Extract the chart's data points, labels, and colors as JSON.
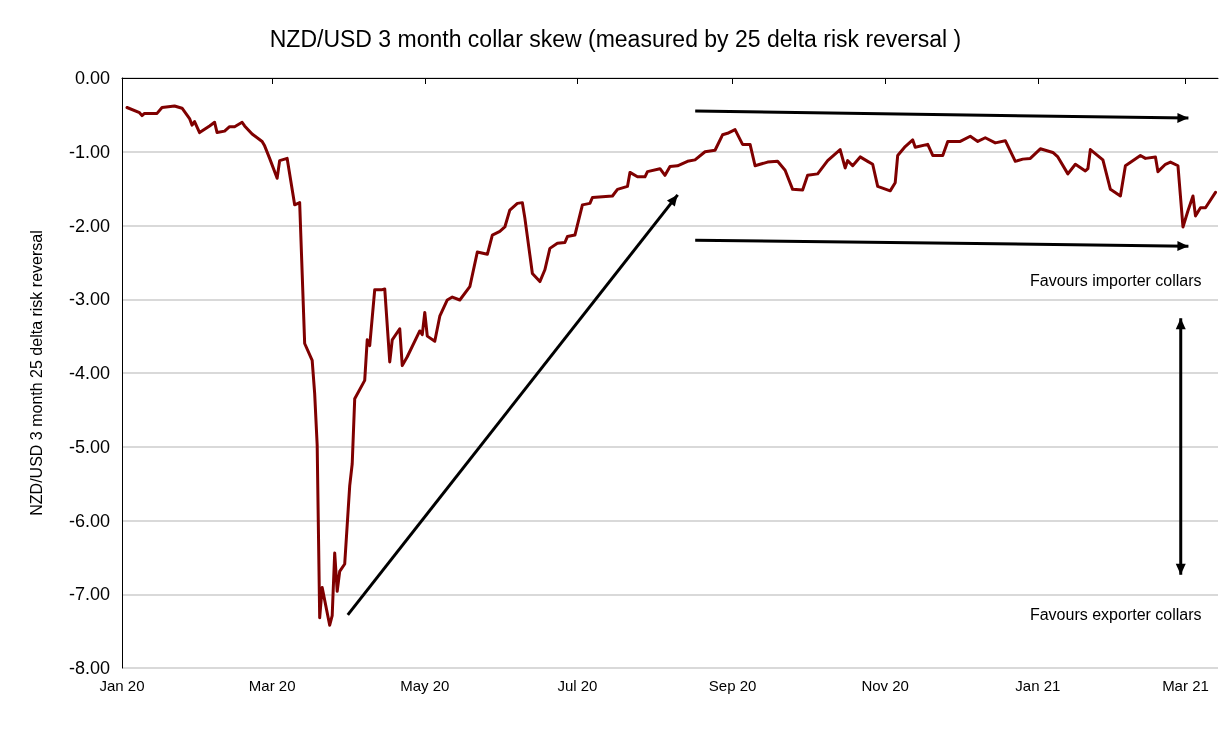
{
  "chart_data": {
    "type": "line",
    "title": "NZD/USD 3 month collar skew (measured by 25 delta risk reversal )",
    "ylabel": "NZD/USD 3 month 25 delta risk reversal",
    "annotations": [
      "Favours importer collars",
      "Favours exporter collars"
    ],
    "x": [
      "2020-01-03",
      "2020-01-08",
      "2020-01-09",
      "2020-01-10",
      "2020-01-15",
      "2020-01-17",
      "2020-01-22",
      "2020-01-25",
      "2020-01-28",
      "2020-01-29",
      "2020-01-30",
      "2020-02-01",
      "2020-02-05",
      "2020-02-07",
      "2020-02-08",
      "2020-02-11",
      "2020-02-13",
      "2020-02-15",
      "2020-02-18",
      "2020-02-19",
      "2020-02-22",
      "2020-02-26",
      "2020-02-27",
      "2020-02-29",
      "2020-03-03",
      "2020-03-04",
      "2020-03-07",
      "2020-03-10",
      "2020-03-12",
      "2020-03-14",
      "2020-03-17",
      "2020-03-18",
      "2020-03-19",
      "2020-03-20",
      "2020-03-21",
      "2020-03-24",
      "2020-03-25",
      "2020-03-26",
      "2020-03-27",
      "2020-03-28",
      "2020-03-30",
      "2020-04-01",
      "2020-04-02",
      "2020-04-03",
      "2020-04-07",
      "2020-04-08",
      "2020-04-09",
      "2020-04-11",
      "2020-04-14",
      "2020-04-15",
      "2020-04-17",
      "2020-04-18",
      "2020-04-21",
      "2020-04-22",
      "2020-04-24",
      "2020-04-29",
      "2020-04-30",
      "2020-05-01",
      "2020-05-02",
      "2020-05-05",
      "2020-05-07",
      "2020-05-10",
      "2020-05-12",
      "2020-05-15",
      "2020-05-19",
      "2020-05-22",
      "2020-05-26",
      "2020-05-28",
      "2020-05-31",
      "2020-06-02",
      "2020-06-04",
      "2020-06-07",
      "2020-06-09",
      "2020-06-10",
      "2020-06-13",
      "2020-06-16",
      "2020-06-18",
      "2020-06-20",
      "2020-06-23",
      "2020-06-26",
      "2020-06-27",
      "2020-06-30",
      "2020-07-03",
      "2020-07-06",
      "2020-07-07",
      "2020-07-15",
      "2020-07-17",
      "2020-07-21",
      "2020-07-22",
      "2020-07-25",
      "2020-07-28",
      "2020-07-29",
      "2020-08-03",
      "2020-08-05",
      "2020-08-07",
      "2020-08-10",
      "2020-08-14",
      "2020-08-17",
      "2020-08-21",
      "2020-08-25",
      "2020-08-28",
      "2020-08-30",
      "2020-09-02",
      "2020-09-05",
      "2020-09-08",
      "2020-09-10",
      "2020-09-12",
      "2020-09-15",
      "2020-09-19",
      "2020-09-22",
      "2020-09-25",
      "2020-09-29",
      "2020-10-01",
      "2020-10-05",
      "2020-10-09",
      "2020-10-14",
      "2020-10-16",
      "2020-10-17",
      "2020-10-19",
      "2020-10-22",
      "2020-10-25",
      "2020-10-27",
      "2020-10-29",
      "2020-11-03",
      "2020-11-05",
      "2020-11-06",
      "2020-11-09",
      "2020-11-12",
      "2020-11-13",
      "2020-11-18",
      "2020-11-20",
      "2020-11-24",
      "2020-11-26",
      "2020-12-01",
      "2020-12-05",
      "2020-12-08",
      "2020-12-11",
      "2020-12-15",
      "2020-12-19",
      "2020-12-23",
      "2020-12-26",
      "2020-12-29",
      "2021-01-02",
      "2021-01-07",
      "2021-01-09",
      "2021-01-13",
      "2021-01-16",
      "2021-01-20",
      "2021-01-21",
      "2021-01-22",
      "2021-01-27",
      "2021-01-30",
      "2021-02-03",
      "2021-02-05",
      "2021-02-11",
      "2021-02-13",
      "2021-02-17",
      "2021-02-18",
      "2021-02-21",
      "2021-02-23",
      "2021-02-26",
      "2021-02-28",
      "2021-03-02",
      "2021-03-04",
      "2021-03-05",
      "2021-03-07",
      "2021-03-09",
      "2021-03-13"
    ],
    "series": [
      {
        "color": "#7f0000",
        "values": [
          -0.4,
          -0.47,
          -0.51,
          -0.48,
          -0.48,
          -0.4,
          -0.38,
          -0.41,
          -0.55,
          -0.64,
          -0.59,
          -0.74,
          -0.65,
          -0.6,
          -0.74,
          -0.72,
          -0.66,
          -0.66,
          -0.6,
          -0.65,
          -0.76,
          -0.86,
          -0.92,
          -1.09,
          -1.36,
          -1.12,
          -1.09,
          -1.72,
          -1.69,
          -3.6,
          -3.83,
          -4.28,
          -4.98,
          -7.32,
          -6.91,
          -7.42,
          -7.29,
          -6.44,
          -6.96,
          -6.69,
          -6.59,
          -5.53,
          -5.23,
          -4.35,
          -4.1,
          -3.55,
          -3.63,
          -2.87,
          -2.87,
          -2.86,
          -3.85,
          -3.55,
          -3.4,
          -3.9,
          -3.78,
          -3.43,
          -3.48,
          -3.18,
          -3.5,
          -3.57,
          -3.23,
          -3.01,
          -2.97,
          -3.01,
          -2.83,
          -2.36,
          -2.39,
          -2.13,
          -2.08,
          -2.02,
          -1.79,
          -1.7,
          -1.69,
          -1.9,
          -2.65,
          -2.76,
          -2.6,
          -2.31,
          -2.24,
          -2.23,
          -2.15,
          -2.13,
          -1.72,
          -1.7,
          -1.62,
          -1.6,
          -1.51,
          -1.47,
          -1.28,
          -1.34,
          -1.34,
          -1.27,
          -1.23,
          -1.32,
          -1.2,
          -1.19,
          -1.13,
          -1.11,
          -1.0,
          -0.98,
          -0.77,
          -0.75,
          -0.7,
          -0.9,
          -0.9,
          -1.19,
          -1.17,
          -1.14,
          -1.13,
          -1.25,
          -1.51,
          -1.52,
          -1.32,
          -1.3,
          -1.12,
          -0.97,
          -1.22,
          -1.12,
          -1.19,
          -1.07,
          -1.13,
          -1.17,
          -1.47,
          -1.53,
          -1.42,
          -1.05,
          -0.93,
          -0.84,
          -0.94,
          -0.9,
          -1.05,
          -1.05,
          -0.86,
          -0.86,
          -0.79,
          -0.86,
          -0.81,
          -0.88,
          -0.85,
          -1.13,
          -1.1,
          -1.09,
          -0.96,
          -1.01,
          -1.07,
          -1.3,
          -1.17,
          -1.26,
          -1.23,
          -0.97,
          -1.11,
          -1.51,
          -1.6,
          -1.19,
          -1.05,
          -1.09,
          -1.07,
          -1.27,
          -1.17,
          -1.14,
          -1.19,
          -2.02,
          -1.8,
          -1.6,
          -1.87,
          -1.76,
          -1.76,
          -1.55
        ]
      }
    ],
    "xlim": [
      "2020-01-01",
      "2021-03-14"
    ],
    "xticks": [
      {
        "value": "2020-01-01",
        "label": "Jan 20"
      },
      {
        "value": "2020-03-01",
        "label": "Mar 20"
      },
      {
        "value": "2020-05-01",
        "label": "May 20"
      },
      {
        "value": "2020-07-01",
        "label": "Jul 20"
      },
      {
        "value": "2020-09-01",
        "label": "Sep 20"
      },
      {
        "value": "2020-11-01",
        "label": "Nov 20"
      },
      {
        "value": "2021-01-01",
        "label": "Jan 21"
      },
      {
        "value": "2021-03-01",
        "label": "Mar 21"
      }
    ],
    "ylim": [
      -8,
      0
    ],
    "yticks": [
      {
        "value": -8,
        "label": "-8.00"
      },
      {
        "value": -7,
        "label": "-7.00"
      },
      {
        "value": -6,
        "label": "-6.00"
      },
      {
        "value": -5,
        "label": "-5.00"
      },
      {
        "value": -4,
        "label": "-4.00"
      },
      {
        "value": -3,
        "label": "-3.00"
      },
      {
        "value": -2,
        "label": "-2.00"
      },
      {
        "value": -1,
        "label": "-1.00"
      },
      {
        "value": 0,
        "label": "0.00"
      }
    ],
    "grid": "y",
    "marker": "none",
    "line_style": "solid"
  }
}
